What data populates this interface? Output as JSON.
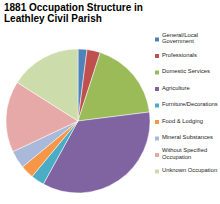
{
  "chart_data": {
    "type": "pie",
    "title": "1881 Occupation Structure in Leathley Civil Parish",
    "categories": [
      "General/Local Government",
      "Professionals",
      "Domestic Services",
      "Agriculture",
      "Furniture/Decorations",
      "Food & Lodging",
      "Mineral Substances",
      "Without Specified Occupation",
      "Unknown Occupation"
    ],
    "values": [
      2,
      3,
      18,
      35,
      3,
      3,
      4,
      16,
      16
    ],
    "colors": [
      "#4f81bd",
      "#c0504d",
      "#9bbb59",
      "#8064a2",
      "#4bacc6",
      "#f79646",
      "#a9b9d9",
      "#e6a9a7",
      "#ccdcaa"
    ],
    "legend": "right"
  }
}
